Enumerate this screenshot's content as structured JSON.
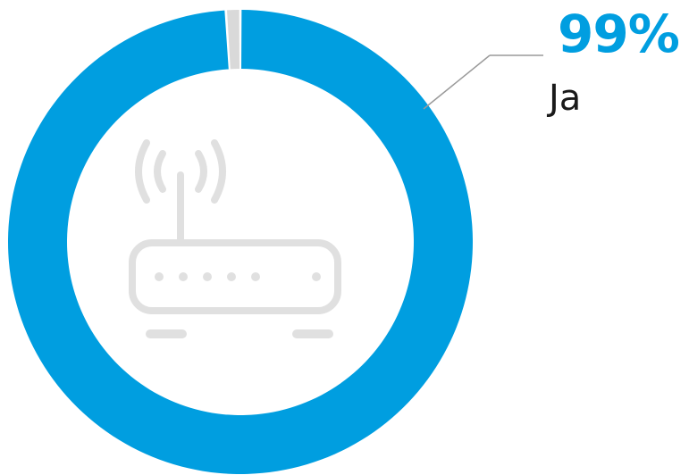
{
  "chart_data": {
    "type": "pie",
    "donut": true,
    "slices": [
      {
        "label": "Ja",
        "value": 99,
        "color": "#009ee0"
      },
      {
        "label": "",
        "value": 1,
        "color": "#d9d9d9"
      }
    ],
    "callout": {
      "value_text": "99%",
      "label": "Ja"
    },
    "center_icon": "wifi-router-icon",
    "colors": {
      "accent": "#009ee0",
      "remainder": "#d9d9d9",
      "icon": "#c8c8c8",
      "leader_line": "#9a9a9a"
    }
  }
}
